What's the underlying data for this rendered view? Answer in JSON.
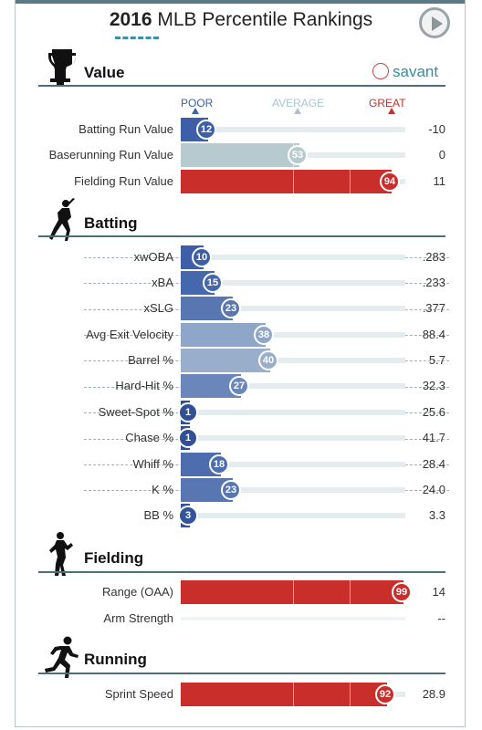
{
  "header": {
    "title_year": "2016",
    "title_rest": " MLB Percentile Rankings",
    "play_icon": "play-icon"
  },
  "brand": {
    "name": "savant",
    "icon": "baseball-icon"
  },
  "scale": {
    "poor": "POOR",
    "average": "AVERAGE",
    "great": "GREAT",
    "poor_color": "#3a62a8",
    "average_color": "#a8c4cc",
    "great_color": "#c0312f"
  },
  "sections": [
    {
      "title": "Value",
      "icon": "trophy-icon",
      "metrics": [
        {
          "label": "Batting Run Value",
          "percentile": 12,
          "value": "-10",
          "color": "#3e5fa8"
        },
        {
          "label": "Baserunning Run Value",
          "percentile": 53,
          "value": "0",
          "color": "#b7cacf"
        },
        {
          "label": "Fielding Run Value",
          "percentile": 94,
          "value": "11",
          "color": "#c92e2b"
        }
      ]
    },
    {
      "title": "Batting",
      "icon": "batter-icon",
      "metrics": [
        {
          "label": "xwOBA",
          "percentile": 10,
          "value": ".283",
          "color": "#3e5fa8"
        },
        {
          "label": "xBA",
          "percentile": 15,
          "value": ".233",
          "color": "#4567ab"
        },
        {
          "label": "xSLG",
          "percentile": 23,
          "value": ".377",
          "color": "#5876b2"
        },
        {
          "label": "Avg Exit Velocity",
          "percentile": 38,
          "value": "88.4",
          "color": "#8ea6c7"
        },
        {
          "label": "Barrel %",
          "percentile": 40,
          "value": "5.7",
          "color": "#98aecb"
        },
        {
          "label": "Hard-Hit %",
          "percentile": 27,
          "value": "32.3",
          "color": "#6a86bb"
        },
        {
          "label": "Sweet-Spot %",
          "percentile": 1,
          "value": "25.6",
          "color": "#2f4f96"
        },
        {
          "label": "Chase %",
          "percentile": 1,
          "value": "41.7",
          "color": "#2f4f96"
        },
        {
          "label": "Whiff %",
          "percentile": 18,
          "value": "28.4",
          "color": "#4d6dae"
        },
        {
          "label": "K %",
          "percentile": 23,
          "value": "24.0",
          "color": "#5876b2"
        },
        {
          "label": "BB %",
          "percentile": 3,
          "value": "3.3",
          "color": "#34539a"
        }
      ]
    },
    {
      "title": "Fielding",
      "icon": "fielder-icon",
      "metrics": [
        {
          "label": "Range (OAA)",
          "percentile": 99,
          "value": "14",
          "color": "#c92e2b"
        },
        {
          "label": "Arm Strength",
          "percentile": null,
          "value": "--",
          "color": "#eef3f4"
        }
      ]
    },
    {
      "title": "Running",
      "icon": "runner-icon",
      "metrics": [
        {
          "label": "Sprint Speed",
          "percentile": 92,
          "value": "28.9",
          "color": "#c92e2b"
        }
      ]
    }
  ]
}
